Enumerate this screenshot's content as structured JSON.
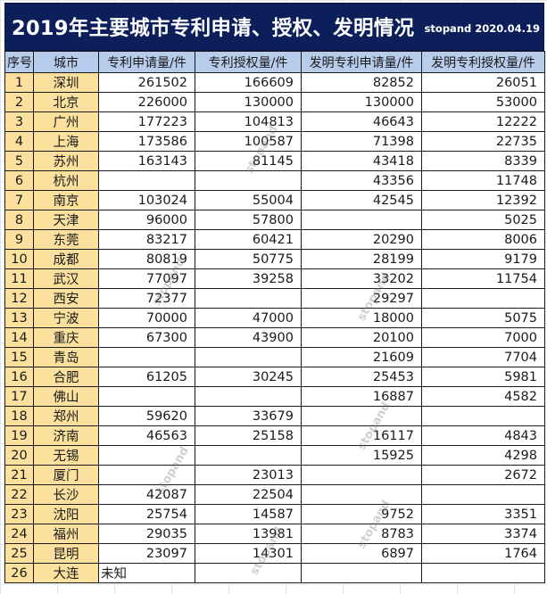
{
  "title": {
    "main": "2019年主要城市专利申请、授权、发明情况",
    "sub": "stopand 2020.04.19"
  },
  "colors": {
    "title_bg": "#0c1f5b",
    "header_bg": "#b7cbea",
    "index_city_bg": "#fbe19d",
    "cell_bg": "#ffffff",
    "border": "#1a1a1a"
  },
  "table": {
    "headers": [
      "序号",
      "城市",
      "专利申请量/件",
      "专利授权量/件",
      "发明专利申请量/件",
      "发明专利授权量/件"
    ],
    "rows": [
      {
        "idx": "1",
        "city": "深圳",
        "patent_apps": "261502",
        "patent_grants": "166609",
        "invention_apps": "82852",
        "invention_grants": "26051"
      },
      {
        "idx": "2",
        "city": "北京",
        "patent_apps": "226000",
        "patent_grants": "130000",
        "invention_apps": "130000",
        "invention_grants": "53000"
      },
      {
        "idx": "3",
        "city": "广州",
        "patent_apps": "177223",
        "patent_grants": "104813",
        "invention_apps": "46643",
        "invention_grants": "12222"
      },
      {
        "idx": "4",
        "city": "上海",
        "patent_apps": "173586",
        "patent_grants": "100587",
        "invention_apps": "71398",
        "invention_grants": "22735"
      },
      {
        "idx": "5",
        "city": "苏州",
        "patent_apps": "163143",
        "patent_grants": "81145",
        "invention_apps": "43418",
        "invention_grants": "8339"
      },
      {
        "idx": "6",
        "city": "杭州",
        "patent_apps": "",
        "patent_grants": "",
        "invention_apps": "43356",
        "invention_grants": "11748"
      },
      {
        "idx": "7",
        "city": "南京",
        "patent_apps": "103024",
        "patent_grants": "55004",
        "invention_apps": "42545",
        "invention_grants": "12392"
      },
      {
        "idx": "8",
        "city": "天津",
        "patent_apps": "96000",
        "patent_grants": "57800",
        "invention_apps": "",
        "invention_grants": "5025"
      },
      {
        "idx": "9",
        "city": "东莞",
        "patent_apps": "83217",
        "patent_grants": "60421",
        "invention_apps": "20290",
        "invention_grants": "8006"
      },
      {
        "idx": "10",
        "city": "成都",
        "patent_apps": "80819",
        "patent_grants": "50775",
        "invention_apps": "28199",
        "invention_grants": "9179"
      },
      {
        "idx": "11",
        "city": "武汉",
        "patent_apps": "77097",
        "patent_grants": "39258",
        "invention_apps": "33202",
        "invention_grants": "11754"
      },
      {
        "idx": "12",
        "city": "西安",
        "patent_apps": "72377",
        "patent_grants": "",
        "invention_apps": "29297",
        "invention_grants": ""
      },
      {
        "idx": "13",
        "city": "宁波",
        "patent_apps": "70000",
        "patent_grants": "47000",
        "invention_apps": "18000",
        "invention_grants": "5075"
      },
      {
        "idx": "14",
        "city": "重庆",
        "patent_apps": "67300",
        "patent_grants": "43900",
        "invention_apps": "20100",
        "invention_grants": "7000"
      },
      {
        "idx": "15",
        "city": "青岛",
        "patent_apps": "",
        "patent_grants": "",
        "invention_apps": "21609",
        "invention_grants": "7704"
      },
      {
        "idx": "16",
        "city": "合肥",
        "patent_apps": "61205",
        "patent_grants": "30245",
        "invention_apps": "25453",
        "invention_grants": "5981"
      },
      {
        "idx": "17",
        "city": "佛山",
        "patent_apps": "",
        "patent_grants": "",
        "invention_apps": "16887",
        "invention_grants": "4582"
      },
      {
        "idx": "18",
        "city": "郑州",
        "patent_apps": "59620",
        "patent_grants": "33679",
        "invention_apps": "",
        "invention_grants": ""
      },
      {
        "idx": "19",
        "city": "济南",
        "patent_apps": "46563",
        "patent_grants": "25158",
        "invention_apps": "16117",
        "invention_grants": "4843"
      },
      {
        "idx": "20",
        "city": "无锡",
        "patent_apps": "",
        "patent_grants": "",
        "invention_apps": "15925",
        "invention_grants": "4298"
      },
      {
        "idx": "21",
        "city": "厦门",
        "patent_apps": "",
        "patent_grants": "23013",
        "invention_apps": "",
        "invention_grants": "2672"
      },
      {
        "idx": "22",
        "city": "长沙",
        "patent_apps": "42087",
        "patent_grants": "22504",
        "invention_apps": "",
        "invention_grants": ""
      },
      {
        "idx": "23",
        "city": "沈阳",
        "patent_apps": "25754",
        "patent_grants": "14587",
        "invention_apps": "9752",
        "invention_grants": "3351"
      },
      {
        "idx": "24",
        "city": "福州",
        "patent_apps": "29035",
        "patent_grants": "13981",
        "invention_apps": "8783",
        "invention_grants": "3374"
      },
      {
        "idx": "25",
        "city": "昆明",
        "patent_apps": "23097",
        "patent_grants": "14301",
        "invention_apps": "6897",
        "invention_grants": "1764"
      },
      {
        "idx": "26",
        "city": "大连",
        "patent_apps": "未知",
        "patent_grants": "",
        "invention_apps": "",
        "invention_grants": ""
      }
    ]
  },
  "watermark": "stopand"
}
